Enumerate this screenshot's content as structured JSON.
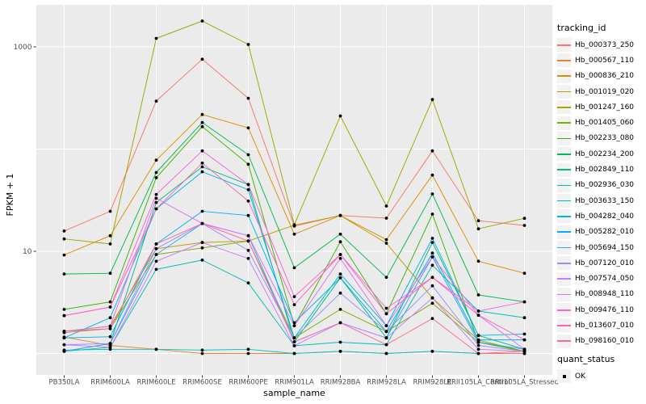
{
  "chart_data": {
    "type": "line",
    "title": "",
    "xlabel": "sample_name",
    "ylabel": "FPKM + 1",
    "y_scale": "log10",
    "ylim": [
      0.63,
      2530
    ],
    "y_major_ticks": [
      1000,
      10
    ],
    "y_minor_gridlines": [
      100,
      1
    ],
    "grid": true,
    "legend_position": "right",
    "legend_title": "tracking_id",
    "point_color": "#000000",
    "quant_status_legend": {
      "title": "quant_status",
      "items": [
        "OK"
      ]
    },
    "categories": [
      "PB350LA",
      "RRIM600LA",
      "RRIM600LE",
      "RRIM600SE",
      "RRIM600PE",
      "RRIM901LA",
      "RRIM928BA",
      "RRIM928LA",
      "RRIM928LE",
      "RRII105LA_Control",
      "RRII105LA_Stressed"
    ],
    "series": [
      {
        "name": "Hb_000373_250",
        "color": "#F8766D",
        "values": [
          15.8,
          24.6,
          295,
          757,
          314,
          17.6,
          22.4,
          21.1,
          96,
          19.9,
          17.9
        ]
      },
      {
        "name": "Hb_000567_110",
        "color": "#EA8331",
        "values": [
          1.45,
          1.2,
          1.1,
          1.0,
          1.0,
          1.0,
          1.05,
          1.0,
          1.05,
          1.0,
          1.05
        ]
      },
      {
        "name": "Hb_000836_210",
        "color": "#D89000",
        "values": [
          9.2,
          14.2,
          78,
          218,
          161,
          14.7,
          22.4,
          13.0,
          55.6,
          8.0,
          6.1
        ]
      },
      {
        "name": "Hb_001019_020",
        "color": "#C09B00",
        "values": [
          1.65,
          1.85,
          10.6,
          12.2,
          12.6,
          18.0,
          22.4,
          12.0,
          3.5,
          1.35,
          1.05
        ]
      },
      {
        "name": "Hb_001247_160",
        "color": "#A3A500",
        "values": [
          13.2,
          11.8,
          1210,
          1790,
          1057,
          18.2,
          211,
          27.7,
          305,
          16.6,
          21.0
        ]
      },
      {
        "name": "Hb_001405_060",
        "color": "#7CAE00",
        "values": [
          1.65,
          1.75,
          9.3,
          10.8,
          12.6,
          1.42,
          2.7,
          1.64,
          3.1,
          1.29,
          1.05
        ]
      },
      {
        "name": "Hb_002233_080",
        "color": "#39B600",
        "values": [
          2.7,
          3.2,
          52.5,
          166,
          71,
          1.87,
          12.4,
          2.45,
          23.1,
          1.29,
          1.05
        ]
      },
      {
        "name": "Hb_002234_200",
        "color": "#00BB4E",
        "values": [
          6.0,
          6.1,
          59,
          182,
          88,
          6.9,
          14.7,
          5.55,
          36.4,
          3.74,
          3.2
        ]
      },
      {
        "name": "Hb_002849_110",
        "color": "#00BF7D",
        "values": [
          1.05,
          1.25,
          30,
          67,
          45,
          1.3,
          5.5,
          1.42,
          12.2,
          1.5,
          1.1
        ]
      },
      {
        "name": "Hb_002936_030",
        "color": "#00C0AF",
        "values": [
          1.05,
          1.15,
          6.65,
          8.2,
          4.9,
          1.19,
          1.29,
          1.22,
          7.3,
          2.6,
          2.24
        ]
      },
      {
        "name": "Hb_003633_150",
        "color": "#00BFC4",
        "values": [
          1.08,
          1.1,
          1.1,
          1.08,
          1.1,
          1.0,
          1.05,
          1.0,
          1.05,
          1.0,
          1.0
        ]
      },
      {
        "name": "Hb_004282_040",
        "color": "#00B8E0",
        "values": [
          1.42,
          2.24,
          26,
          60,
          40,
          1.42,
          6.0,
          1.87,
          13.4,
          1.5,
          1.55
        ]
      },
      {
        "name": "Hb_005282_010",
        "color": "#00B0F6",
        "values": [
          1.42,
          1.46,
          11.8,
          24.6,
          22.4,
          2.0,
          5.5,
          1.64,
          9.6,
          1.36,
          1.36
        ]
      },
      {
        "name": "Hb_005694_150",
        "color": "#35A2FF",
        "values": [
          1.05,
          1.25,
          9.3,
          18.7,
          14.2,
          1.3,
          2.0,
          1.42,
          8.8,
          1.29,
          1.1
        ]
      },
      {
        "name": "Hb_007120_010",
        "color": "#9590FF",
        "values": [
          1.22,
          1.25,
          10.6,
          18.7,
          10.2,
          1.42,
          3.9,
          1.64,
          4.6,
          1.2,
          1.05
        ]
      },
      {
        "name": "Hb_007574_050",
        "color": "#C77CFF",
        "values": [
          1.22,
          1.15,
          8.0,
          12.2,
          8.5,
          1.19,
          2.0,
          1.42,
          3.5,
          1.1,
          1.05
        ]
      },
      {
        "name": "Hb_008948_110",
        "color": "#E76BF3",
        "values": [
          1.65,
          1.85,
          33,
          18.7,
          14.2,
          1.87,
          8.5,
          1.87,
          8.8,
          2.37,
          1.1
        ]
      },
      {
        "name": "Hb_009476_110",
        "color": "#FA62DB",
        "values": [
          2.35,
          2.85,
          36,
          96,
          45,
          3.6,
          9.3,
          2.77,
          5.55,
          2.6,
          3.2
        ]
      },
      {
        "name": "Hb_013607_010",
        "color": "#FF62BC",
        "values": [
          2.35,
          2.85,
          26,
          73,
          31,
          3.0,
          9.3,
          2.45,
          5.55,
          2.37,
          1.36
        ]
      },
      {
        "name": "Hb_098160_010",
        "color": "#FF6A98",
        "values": [
          1.6,
          1.75,
          11.8,
          18.7,
          12.6,
          1.3,
          2.0,
          1.22,
          2.2,
          1.0,
          1.0
        ]
      }
    ]
  },
  "colors": {
    "panel_bg": "#EBEBEB",
    "gridline": "#FFFFFF",
    "tick_text": "#4D4D4D",
    "tick_mark": "#333333",
    "legend_key_bg": "#F2F2F2"
  }
}
